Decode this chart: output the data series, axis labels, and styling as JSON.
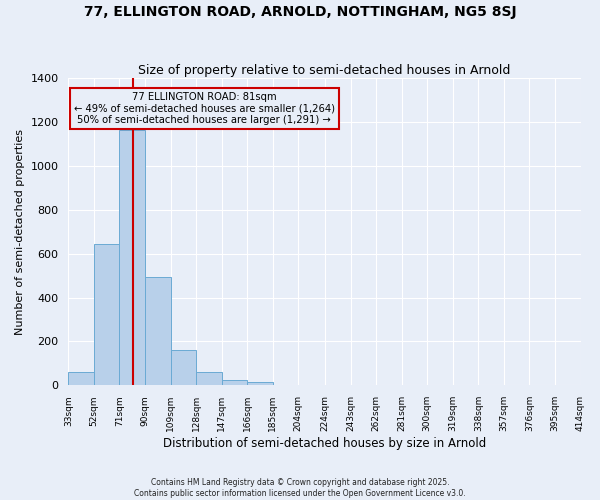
{
  "title": "77, ELLINGTON ROAD, ARNOLD, NOTTINGHAM, NG5 8SJ",
  "subtitle": "Size of property relative to semi-detached houses in Arnold",
  "xlabel": "Distribution of semi-detached houses by size in Arnold",
  "ylabel": "Number of semi-detached properties",
  "bin_labels": [
    "33sqm",
    "52sqm",
    "71sqm",
    "90sqm",
    "109sqm",
    "128sqm",
    "147sqm",
    "166sqm",
    "185sqm",
    "204sqm",
    "224sqm",
    "243sqm",
    "262sqm",
    "281sqm",
    "300sqm",
    "319sqm",
    "338sqm",
    "357sqm",
    "376sqm",
    "395sqm",
    "414sqm"
  ],
  "bin_edges": [
    33,
    52,
    71,
    90,
    109,
    128,
    147,
    166,
    185,
    204,
    224,
    243,
    262,
    281,
    300,
    319,
    338,
    357,
    376,
    395,
    414
  ],
  "bar_values": [
    60,
    645,
    1165,
    495,
    160,
    60,
    25,
    15,
    0,
    0,
    0,
    0,
    0,
    0,
    0,
    0,
    0,
    0,
    0,
    0
  ],
  "bar_color": "#b8d0ea",
  "bar_edge_color": "#6aaad4",
  "vline_color": "#cc0000",
  "vline_x": 81,
  "annotation_title": "77 ELLINGTON ROAD: 81sqm",
  "annotation_line1": "← 49% of semi-detached houses are smaller (1,264)",
  "annotation_line2": "50% of semi-detached houses are larger (1,291) →",
  "annotation_box_edgecolor": "#cc0000",
  "ylim": [
    0,
    1400
  ],
  "yticks": [
    0,
    200,
    400,
    600,
    800,
    1000,
    1200,
    1400
  ],
  "footnote1": "Contains HM Land Registry data © Crown copyright and database right 2025.",
  "footnote2": "Contains public sector information licensed under the Open Government Licence v3.0.",
  "background_color": "#e8eef8"
}
